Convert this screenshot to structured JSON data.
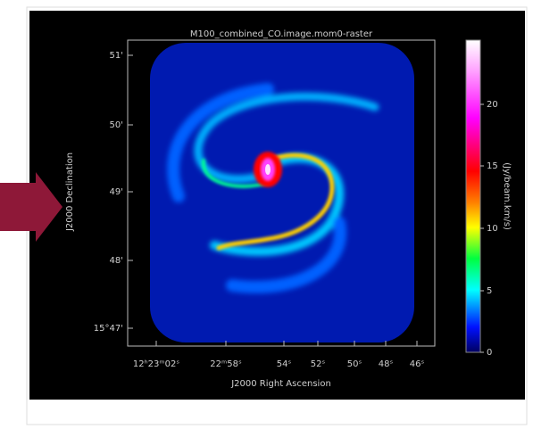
{
  "figure": {
    "title": "M100_combined_CO.image.mom0-raster",
    "x_label": "J2000 Right Ascension",
    "y_label": "J2000 Declination",
    "x_ticks": [
      "12ʰ23ᵐ02ˢ",
      "22ᵐ58ˢ",
      "54ˢ",
      "52ˢ",
      "50ˢ",
      "48ˢ",
      "46ˢ"
    ],
    "y_ticks": [
      "51'",
      "50'",
      "49'",
      "48'",
      "15°47'"
    ],
    "colorbar": {
      "label": "(Jy/beam.km/s)",
      "ticks": [
        "0",
        "5",
        "10",
        "15",
        "20"
      ]
    }
  }
}
